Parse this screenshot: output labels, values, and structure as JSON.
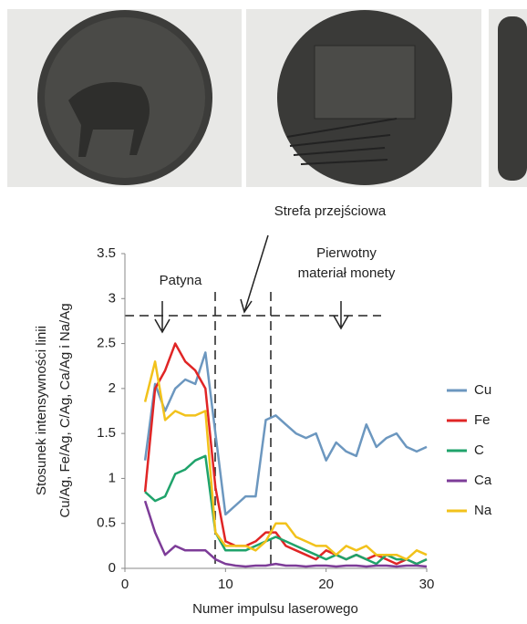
{
  "chart_data": {
    "type": "line",
    "annotations": [
      "Strefa przejściowa",
      "Patyna",
      "Pierwotny",
      "materiał monety"
    ],
    "xlabel": "Numer impulsu laserowego",
    "ylabel": [
      "Stosunek intensywności linii",
      "Cu/Ag, Fe/Ag, C/Ag, Ca/Ag i Na/Ag"
    ],
    "x": [
      2,
      3,
      4,
      5,
      6,
      7,
      8,
      9,
      10,
      11,
      12,
      13,
      14,
      15,
      16,
      17,
      18,
      19,
      20,
      21,
      22,
      23,
      24,
      25,
      26,
      27,
      28,
      29,
      30
    ],
    "series": [
      {
        "name": "Cu",
        "color": "#6c97bf",
        "values": [
          1.2,
          2.05,
          1.75,
          2.0,
          2.1,
          2.05,
          2.4,
          1.5,
          0.6,
          0.7,
          0.8,
          0.8,
          1.65,
          1.7,
          1.6,
          1.5,
          1.45,
          1.5,
          1.2,
          1.4,
          1.3,
          1.25,
          1.6,
          1.35,
          1.45,
          1.5,
          1.35,
          1.3,
          1.35
        ]
      },
      {
        "name": "Fe",
        "color": "#e02525",
        "values": [
          0.85,
          2.0,
          2.2,
          2.5,
          2.3,
          2.2,
          2.0,
          0.9,
          0.3,
          0.25,
          0.25,
          0.3,
          0.4,
          0.4,
          0.25,
          0.2,
          0.15,
          0.1,
          0.2,
          0.15,
          0.1,
          0.15,
          0.1,
          0.15,
          0.1,
          0.05,
          0.1,
          0.05,
          0.1
        ]
      },
      {
        "name": "C",
        "color": "#1fa36b",
        "values": [
          0.85,
          0.75,
          0.8,
          1.05,
          1.1,
          1.2,
          1.25,
          0.4,
          0.2,
          0.2,
          0.2,
          0.25,
          0.3,
          0.35,
          0.3,
          0.25,
          0.2,
          0.15,
          0.1,
          0.15,
          0.1,
          0.15,
          0.1,
          0.05,
          0.15,
          0.1,
          0.1,
          0.05,
          0.1
        ]
      },
      {
        "name": "Ca",
        "color": "#7d3c98",
        "values": [
          0.75,
          0.4,
          0.15,
          0.25,
          0.2,
          0.2,
          0.2,
          0.1,
          0.05,
          0.03,
          0.02,
          0.03,
          0.03,
          0.05,
          0.03,
          0.03,
          0.02,
          0.03,
          0.03,
          0.02,
          0.03,
          0.03,
          0.02,
          0.03,
          0.03,
          0.02,
          0.03,
          0.03,
          0.02
        ]
      },
      {
        "name": "Na",
        "color": "#f2c21b",
        "values": [
          1.85,
          2.3,
          1.65,
          1.75,
          1.7,
          1.7,
          1.75,
          0.4,
          0.25,
          0.25,
          0.25,
          0.2,
          0.3,
          0.5,
          0.5,
          0.35,
          0.3,
          0.25,
          0.25,
          0.15,
          0.25,
          0.2,
          0.25,
          0.15,
          0.15,
          0.15,
          0.1,
          0.2,
          0.15
        ]
      }
    ],
    "xlim": [
      0,
      30
    ],
    "xticks": [
      0,
      10,
      20,
      30
    ],
    "ylim": [
      0,
      3.5
    ],
    "yticks": [
      0,
      0.5,
      1,
      1.5,
      2,
      2.5,
      3,
      3.5
    ],
    "legend": "right"
  }
}
